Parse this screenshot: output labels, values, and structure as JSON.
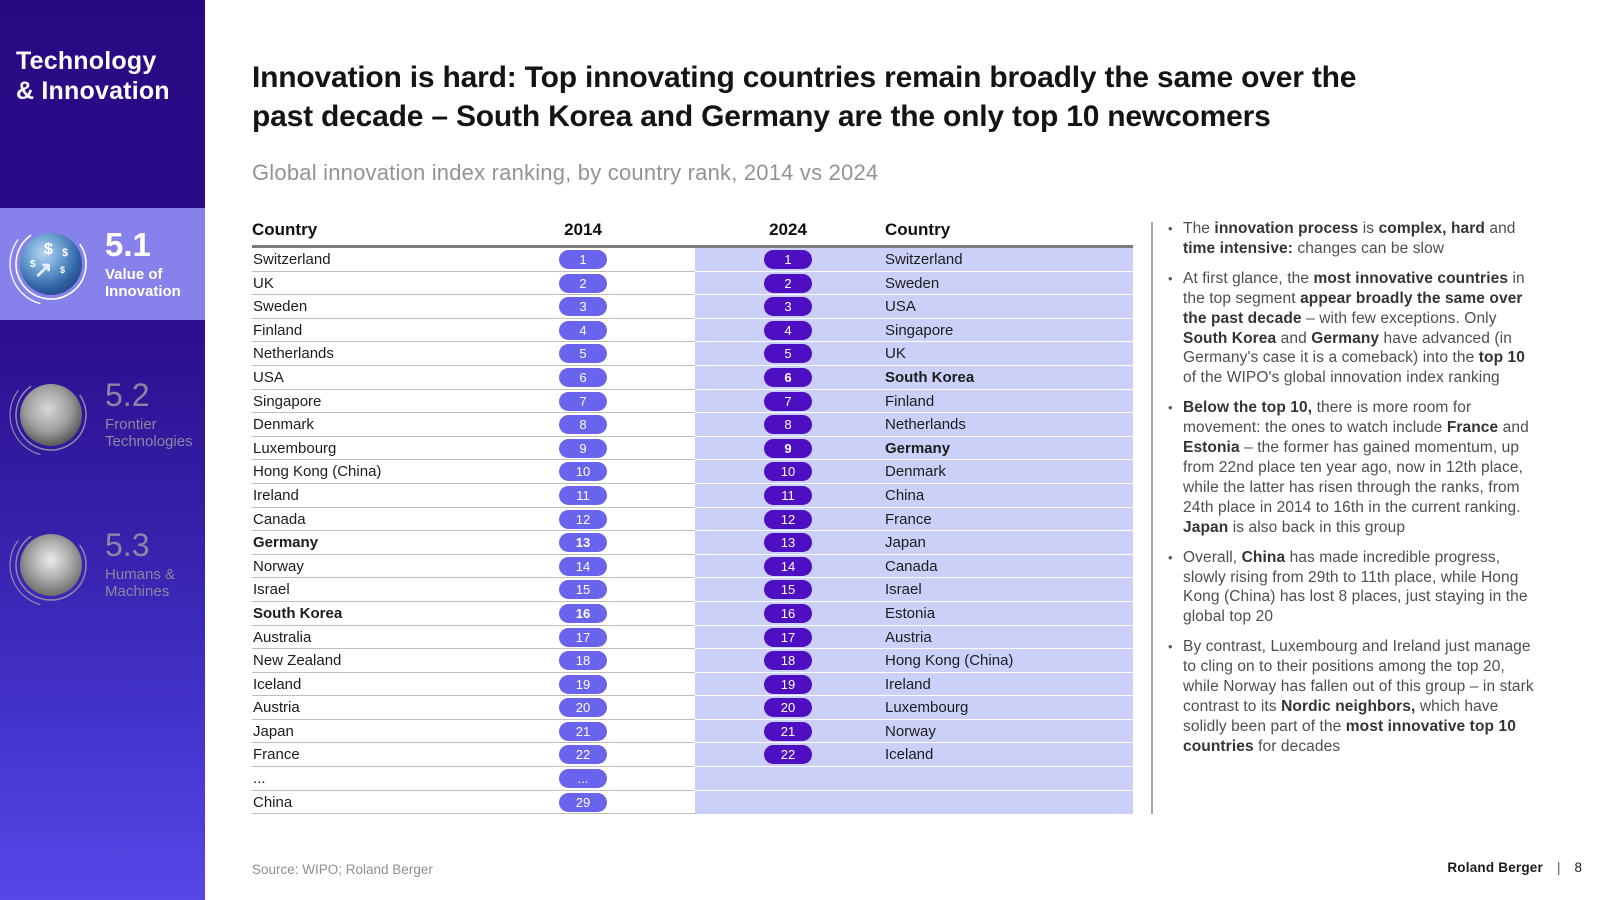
{
  "sidebar": {
    "title": "Technology\n& Innovation",
    "sections": [
      {
        "num": "5.1",
        "label": "Value of\nInnovation"
      },
      {
        "num": "5.2",
        "label": "Frontier\nTechnologies"
      },
      {
        "num": "5.3",
        "label": "Humans &\nMachines"
      }
    ]
  },
  "header": {
    "title": "Innovation is hard: Top innovating countries remain broadly the same over the\npast decade – South Korea and Germany are the only top 10 newcomers",
    "subtitle": "Global innovation index ranking, by country rank, 2014 vs 2024"
  },
  "table": {
    "headers": [
      "Country",
      "2014",
      "2024",
      "Country"
    ],
    "rows": [
      {
        "left": "Switzerland",
        "lrank": "1",
        "lbold": false,
        "rrank": "1",
        "right": "Switzerland",
        "rbold": false
      },
      {
        "left": "UK",
        "lrank": "2",
        "lbold": false,
        "rrank": "2",
        "right": "Sweden",
        "rbold": false
      },
      {
        "left": "Sweden",
        "lrank": "3",
        "lbold": false,
        "rrank": "3",
        "right": "USA",
        "rbold": false
      },
      {
        "left": "Finland",
        "lrank": "4",
        "lbold": false,
        "rrank": "4",
        "right": "Singapore",
        "rbold": false
      },
      {
        "left": "Netherlands",
        "lrank": "5",
        "lbold": false,
        "rrank": "5",
        "right": "UK",
        "rbold": false
      },
      {
        "left": "USA",
        "lrank": "6",
        "lbold": false,
        "rrank": "6",
        "right": "South Korea",
        "rbold": true
      },
      {
        "left": "Singapore",
        "lrank": "7",
        "lbold": false,
        "rrank": "7",
        "right": "Finland",
        "rbold": false
      },
      {
        "left": "Denmark",
        "lrank": "8",
        "lbold": false,
        "rrank": "8",
        "right": "Netherlands",
        "rbold": false
      },
      {
        "left": "Luxembourg",
        "lrank": "9",
        "lbold": false,
        "rrank": "9",
        "right": "Germany",
        "rbold": true
      },
      {
        "left": "Hong Kong (China)",
        "lrank": "10",
        "lbold": false,
        "rrank": "10",
        "right": "Denmark",
        "rbold": false
      },
      {
        "left": "Ireland",
        "lrank": "11",
        "lbold": false,
        "rrank": "11",
        "right": "China",
        "rbold": false
      },
      {
        "left": "Canada",
        "lrank": "12",
        "lbold": false,
        "rrank": "12",
        "right": "France",
        "rbold": false
      },
      {
        "left": "Germany",
        "lrank": "13",
        "lbold": true,
        "rrank": "13",
        "right": "Japan",
        "rbold": false
      },
      {
        "left": "Norway",
        "lrank": "14",
        "lbold": false,
        "rrank": "14",
        "right": "Canada",
        "rbold": false
      },
      {
        "left": "Israel",
        "lrank": "15",
        "lbold": false,
        "rrank": "15",
        "right": "Israel",
        "rbold": false
      },
      {
        "left": "South Korea",
        "lrank": "16",
        "lbold": true,
        "rrank": "16",
        "right": "Estonia",
        "rbold": false
      },
      {
        "left": "Australia",
        "lrank": "17",
        "lbold": false,
        "rrank": "17",
        "right": "Austria",
        "rbold": false
      },
      {
        "left": "New Zealand",
        "lrank": "18",
        "lbold": false,
        "rrank": "18",
        "right": "Hong Kong (China)",
        "rbold": false
      },
      {
        "left": "Iceland",
        "lrank": "19",
        "lbold": false,
        "rrank": "19",
        "right": "Ireland",
        "rbold": false
      },
      {
        "left": "Austria",
        "lrank": "20",
        "lbold": false,
        "rrank": "20",
        "right": "Luxembourg",
        "rbold": false
      },
      {
        "left": "Japan",
        "lrank": "21",
        "lbold": false,
        "rrank": "21",
        "right": "Norway",
        "rbold": false
      },
      {
        "left": "France",
        "lrank": "22",
        "lbold": false,
        "rrank": "22",
        "right": "Iceland",
        "rbold": false
      },
      {
        "left": "...",
        "lrank": "...",
        "lbold": false,
        "rrank": null,
        "right": null,
        "rbold": false
      },
      {
        "left": "China",
        "lrank": "29",
        "lbold": false,
        "rrank": null,
        "right": null,
        "rbold": false
      }
    ]
  },
  "bullets": [
    [
      {
        "t": "The ",
        "b": false
      },
      {
        "t": "innovation process",
        "b": true
      },
      {
        "t": " is ",
        "b": false
      },
      {
        "t": "complex, hard",
        "b": true
      },
      {
        "t": " and ",
        "b": false
      },
      {
        "t": "time intensive:",
        "b": true
      },
      {
        "t": " changes can be slow",
        "b": false
      }
    ],
    [
      {
        "t": "At first glance, the ",
        "b": false
      },
      {
        "t": "most innovative countries",
        "b": true
      },
      {
        "t": " in the top segment ",
        "b": false
      },
      {
        "t": "appear broadly the same over the past decade",
        "b": true
      },
      {
        "t": " – with few exceptions. Only ",
        "b": false
      },
      {
        "t": "South Korea",
        "b": true
      },
      {
        "t": " and ",
        "b": false
      },
      {
        "t": "Germany",
        "b": true
      },
      {
        "t": " have advanced (in Germany's case it is a comeback) into the ",
        "b": false
      },
      {
        "t": "top 10",
        "b": true
      },
      {
        "t": " of the WIPO's global innovation index ranking",
        "b": false
      }
    ],
    [
      {
        "t": "Below the top 10,",
        "b": true
      },
      {
        "t": " there is more room for movement: the ones to watch include ",
        "b": false
      },
      {
        "t": "France",
        "b": true
      },
      {
        "t": " and ",
        "b": false
      },
      {
        "t": "Estonia",
        "b": true
      },
      {
        "t": " – the former has gained momentum, up from 22nd place ten year ago, now in 12th place, while the latter has risen through the ranks, from 24th place in 2014 to 16th in the current ranking. ",
        "b": false
      },
      {
        "t": "Japan",
        "b": true
      },
      {
        "t": " is also back in this group",
        "b": false
      }
    ],
    [
      {
        "t": "Overall, ",
        "b": false
      },
      {
        "t": "China",
        "b": true
      },
      {
        "t": " has made incredible progress, slowly rising from 29th to 11th place, while Hong Kong (China) has lost 8 places, just staying in the global top 20",
        "b": false
      }
    ],
    [
      {
        "t": "By contrast, Luxembourg and Ireland just manage to cling on to their positions among the top 20, while Norway has fallen out of this group – in stark contrast to its ",
        "b": false
      },
      {
        "t": "Nordic neighbors,",
        "b": true
      },
      {
        "t": " which have solidly been part of the ",
        "b": false
      },
      {
        "t": "most innovative top 10 countries",
        "b": true
      },
      {
        "t": " for decades",
        "b": false
      }
    ]
  ],
  "footer": {
    "source": "Source: WIPO; Roland Berger",
    "brand": "Roland Berger",
    "separator": "|",
    "page": "8"
  },
  "icons": {
    "bullet": "•",
    "dollar": "$",
    "trend_arrow": "↗"
  },
  "colors": {
    "badge_2014": "#6A63EE",
    "badge_2024": "#4E0EC2",
    "row_highlight": "#CBD0F8",
    "sidebar_active": "#8781EB",
    "sidebar_dark": "#290983"
  }
}
